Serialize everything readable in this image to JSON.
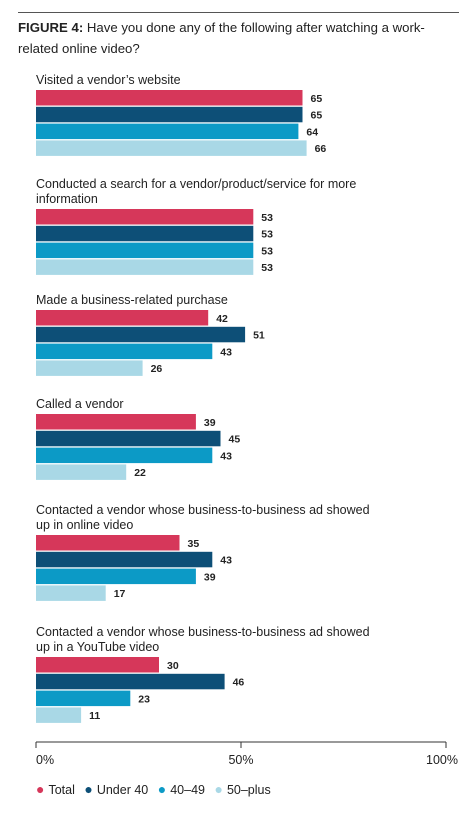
{
  "figure": {
    "label": "FIGURE 4:",
    "question": "Have you done any of the following after watching a work-related online video?"
  },
  "chart_data": {
    "type": "bar",
    "orientation": "horizontal",
    "categories": [
      "Visited a vendor’s website",
      "Conducted a search for a vendor/product/service for more information",
      "Made a business-related purchase",
      "Called a vendor",
      "Contacted a vendor whose business-to-business ad showed up in online video",
      "Contacted a vendor whose business-to-business ad showed up in a YouTube video"
    ],
    "category_lines": [
      [
        "Visited a vendor’s website"
      ],
      [
        "Conducted a search for a vendor/product/service for more",
        "information"
      ],
      [
        "Made a business-related purchase"
      ],
      [
        "Called a vendor"
      ],
      [
        "Contacted a vendor whose business-to-business ad showed",
        "up in online video"
      ],
      [
        "Contacted a vendor whose business-to-business ad showed",
        "up in a YouTube video"
      ]
    ],
    "series": [
      {
        "name": "Total",
        "color": "#d6375a",
        "values": [
          65,
          53,
          42,
          39,
          35,
          30
        ]
      },
      {
        "name": "Under 40",
        "color": "#0d4f77",
        "values": [
          65,
          53,
          51,
          45,
          43,
          46
        ]
      },
      {
        "name": "40–49",
        "color": "#0c9ac6",
        "values": [
          64,
          53,
          43,
          43,
          39,
          23
        ]
      },
      {
        "name": "50–plus",
        "color": "#a9d8e6",
        "values": [
          66,
          53,
          26,
          22,
          17,
          11
        ]
      }
    ],
    "x_ticks": [
      {
        "value": 0,
        "label": "0%"
      },
      {
        "value": 50,
        "label": "50%"
      },
      {
        "value": 100,
        "label": "100%"
      }
    ],
    "xlim": [
      0,
      100
    ],
    "legend_position": "bottom"
  }
}
